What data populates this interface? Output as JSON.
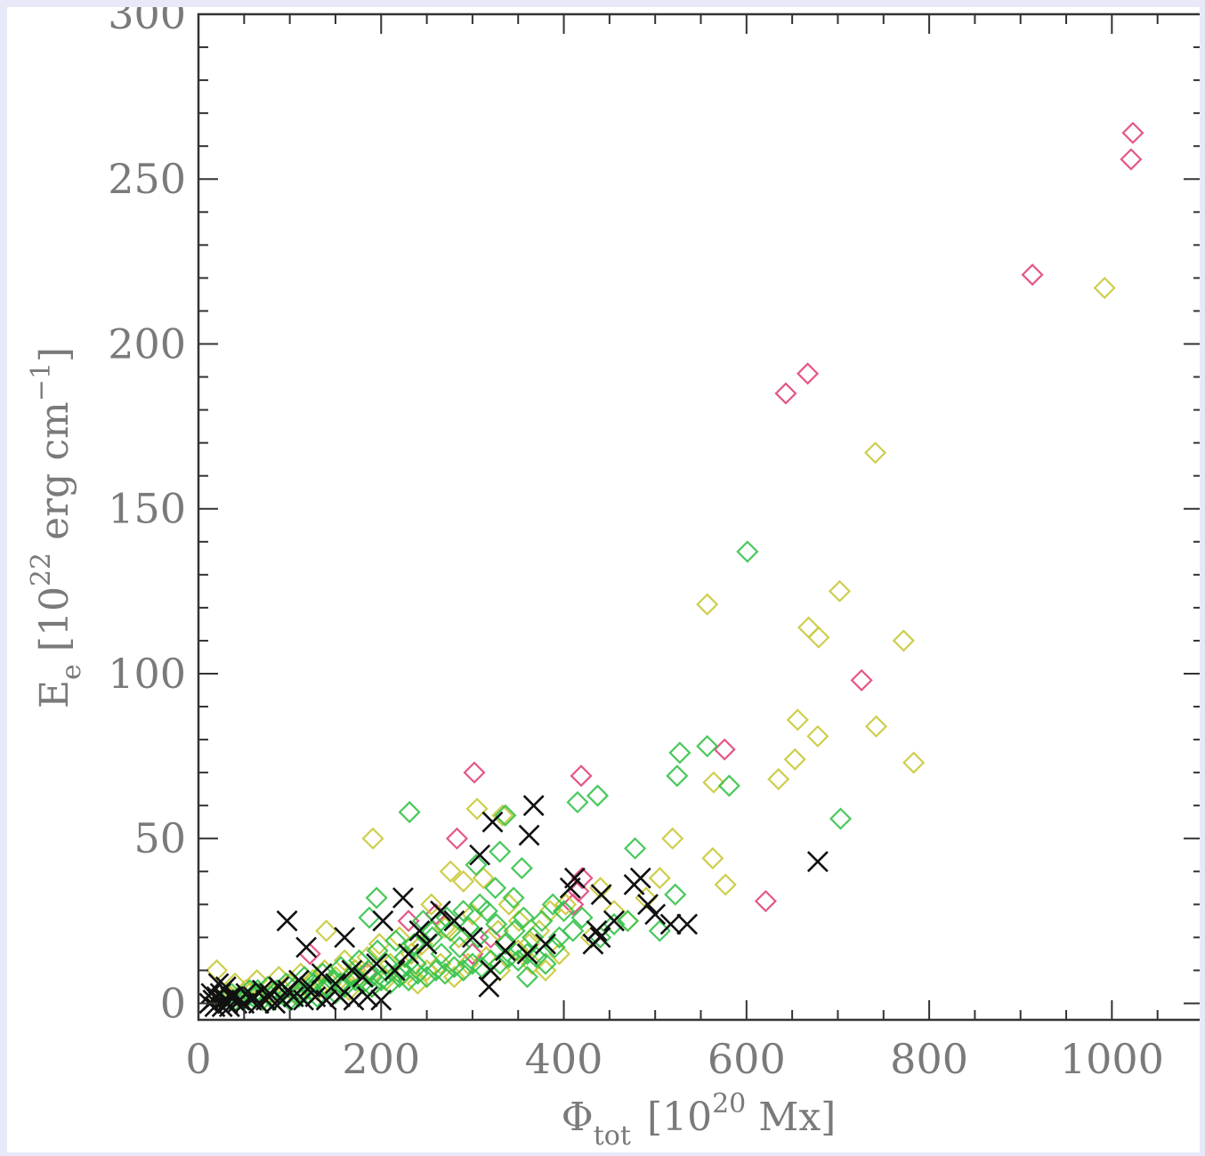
{
  "chart_data": {
    "type": "scatter",
    "xlabel": {
      "symbol": "Φ",
      "sub": "tot",
      "pre": "[10",
      "sup": "20",
      "post": " Mx]"
    },
    "ylabel": {
      "symbol": "E",
      "sub": "e",
      "pre": "[10",
      "sup": "22",
      "mid": " erg cm",
      "sup2": "−1",
      "post": "]"
    },
    "xlim": [
      0,
      1100
    ],
    "ylim": [
      -5,
      300
    ],
    "x_ticks": [
      0,
      200,
      400,
      600,
      800,
      1000
    ],
    "y_ticks": [
      0,
      50,
      100,
      150,
      200,
      250,
      300
    ],
    "x_tick_labels": [
      "0",
      "200",
      "400",
      "600",
      "800",
      "1000"
    ],
    "y_tick_labels": [
      "0",
      "50",
      "100",
      "150",
      "200",
      "250",
      "300"
    ],
    "colors": {
      "red": "#e0457b",
      "yellow": "#c9c93a",
      "green": "#35c24a",
      "black": "#111111",
      "axis": "#333333"
    },
    "series": [
      {
        "marker": "diamond",
        "color": "red",
        "points": [
          [
            1023,
            264
          ],
          [
            1021,
            256
          ],
          [
            913,
            221
          ],
          [
            667,
            191
          ],
          [
            643,
            185
          ],
          [
            726,
            98
          ],
          [
            576,
            77
          ],
          [
            302,
            70
          ],
          [
            419,
            69
          ],
          [
            621,
            31
          ],
          [
            283,
            50
          ],
          [
            420,
            38
          ],
          [
            416,
            34
          ],
          [
            122,
            15
          ],
          [
            185,
            9
          ],
          [
            260,
            27
          ],
          [
            320,
            20
          ],
          [
            410,
            30
          ],
          [
            230,
            25
          ],
          [
            300,
            15
          ]
        ]
      },
      {
        "marker": "diamond",
        "color": "yellow",
        "points": [
          [
            992,
            217
          ],
          [
            741,
            167
          ],
          [
            557,
            121
          ],
          [
            702,
            125
          ],
          [
            668,
            114
          ],
          [
            679,
            111
          ],
          [
            772,
            110
          ],
          [
            656,
            86
          ],
          [
            742,
            84
          ],
          [
            678,
            81
          ],
          [
            783,
            73
          ],
          [
            653,
            74
          ],
          [
            635,
            68
          ],
          [
            564,
            67
          ],
          [
            519,
            50
          ],
          [
            563,
            44
          ],
          [
            577,
            36
          ],
          [
            191,
            50
          ],
          [
            305,
            59
          ],
          [
            333,
            57
          ],
          [
            312,
            38
          ],
          [
            276,
            40
          ],
          [
            290,
            37
          ],
          [
            140,
            22
          ],
          [
            20,
            10
          ],
          [
            402,
            30
          ],
          [
            385,
            28
          ],
          [
            373,
            22
          ],
          [
            362,
            18
          ],
          [
            351,
            25
          ],
          [
            340,
            30
          ],
          [
            328,
            22
          ],
          [
            300,
            27
          ],
          [
            285,
            20
          ],
          [
            270,
            23
          ],
          [
            255,
            30
          ],
          [
            245,
            18
          ],
          [
            233,
            15
          ],
          [
            220,
            20
          ],
          [
            210,
            12
          ],
          [
            198,
            18
          ],
          [
            185,
            14
          ],
          [
            172,
            10
          ],
          [
            160,
            13
          ],
          [
            150,
            8
          ],
          [
            138,
            10
          ],
          [
            125,
            7
          ],
          [
            112,
            9
          ],
          [
            100,
            6
          ],
          [
            88,
            8
          ],
          [
            76,
            5
          ],
          [
            64,
            7
          ],
          [
            52,
            4
          ],
          [
            40,
            6
          ],
          [
            505,
            38
          ],
          [
            490,
            32
          ],
          [
            470,
            25
          ],
          [
            455,
            28
          ],
          [
            440,
            35
          ],
          [
            430,
            20
          ],
          [
            395,
            15
          ],
          [
            380,
            10
          ],
          [
            365,
            12
          ],
          [
            350,
            16
          ],
          [
            330,
            10
          ],
          [
            315,
            14
          ],
          [
            295,
            12
          ],
          [
            280,
            8
          ],
          [
            265,
            12
          ],
          [
            250,
            10
          ],
          [
            240,
            6
          ],
          [
            225,
            9
          ],
          [
            205,
            7
          ],
          [
            190,
            5
          ],
          [
            175,
            8
          ],
          [
            165,
            4
          ],
          [
            145,
            6
          ],
          [
            130,
            4
          ],
          [
            118,
            5
          ],
          [
            105,
            3
          ],
          [
            93,
            4
          ],
          [
            80,
            3
          ],
          [
            68,
            2
          ],
          [
            56,
            3
          ],
          [
            44,
            2
          ],
          [
            32,
            3
          ],
          [
            25,
            1
          ]
        ]
      },
      {
        "marker": "diamond",
        "color": "green",
        "points": [
          [
            601,
            137
          ],
          [
            557,
            78
          ],
          [
            527,
            76
          ],
          [
            524,
            69
          ],
          [
            581,
            66
          ],
          [
            703,
            56
          ],
          [
            437,
            63
          ],
          [
            415,
            61
          ],
          [
            231,
            58
          ],
          [
            336,
            57
          ],
          [
            330,
            46
          ],
          [
            354,
            41
          ],
          [
            304,
            42
          ],
          [
            195,
            32
          ],
          [
            187,
            26
          ],
          [
            478,
            47
          ],
          [
            522,
            33
          ],
          [
            505,
            22
          ],
          [
            470,
            25
          ],
          [
            360,
            8
          ],
          [
            380,
            12
          ],
          [
            395,
            20
          ],
          [
            400,
            28
          ],
          [
            388,
            30
          ],
          [
            376,
            25
          ],
          [
            366,
            20
          ],
          [
            356,
            26
          ],
          [
            346,
            22
          ],
          [
            336,
            18
          ],
          [
            326,
            24
          ],
          [
            316,
            28
          ],
          [
            306,
            20
          ],
          [
            296,
            23
          ],
          [
            286,
            17
          ],
          [
            276,
            22
          ],
          [
            266,
            15
          ],
          [
            256,
            20
          ],
          [
            246,
            25
          ],
          [
            236,
            18
          ],
          [
            226,
            14
          ],
          [
            216,
            19
          ],
          [
            206,
            12
          ],
          [
            196,
            16
          ],
          [
            186,
            10
          ],
          [
            176,
            13
          ],
          [
            166,
            8
          ],
          [
            156,
            11
          ],
          [
            146,
            7
          ],
          [
            136,
            9
          ],
          [
            126,
            6
          ],
          [
            116,
            8
          ],
          [
            106,
            5
          ],
          [
            96,
            6
          ],
          [
            86,
            4
          ],
          [
            76,
            5
          ],
          [
            66,
            3
          ],
          [
            56,
            4
          ],
          [
            46,
            2
          ],
          [
            36,
            3
          ],
          [
            30,
            1
          ],
          [
            60,
            2
          ],
          [
            70,
            1
          ],
          [
            80,
            2
          ],
          [
            90,
            3
          ],
          [
            100,
            1
          ],
          [
            110,
            2
          ],
          [
            120,
            3
          ],
          [
            130,
            2
          ],
          [
            140,
            4
          ],
          [
            150,
            3
          ],
          [
            160,
            5
          ],
          [
            170,
            4
          ],
          [
            180,
            6
          ],
          [
            190,
            5
          ],
          [
            200,
            7
          ],
          [
            210,
            6
          ],
          [
            220,
            8
          ],
          [
            230,
            7
          ],
          [
            240,
            9
          ],
          [
            250,
            8
          ],
          [
            260,
            10
          ],
          [
            270,
            9
          ],
          [
            280,
            11
          ],
          [
            290,
            10
          ],
          [
            300,
            12
          ],
          [
            310,
            11
          ],
          [
            320,
            13
          ],
          [
            330,
            12
          ],
          [
            340,
            14
          ],
          [
            350,
            13
          ],
          [
            360,
            15
          ],
          [
            370,
            14
          ],
          [
            390,
            17
          ],
          [
            410,
            22
          ],
          [
            420,
            26
          ],
          [
            440,
            20
          ],
          [
            455,
            24
          ],
          [
            345,
            32
          ],
          [
            325,
            35
          ],
          [
            308,
            30
          ],
          [
            290,
            28
          ],
          [
            272,
            26
          ],
          [
            255,
            22
          ],
          [
            238,
            12
          ],
          [
            222,
            10
          ],
          [
            208,
            9
          ],
          [
            190,
            8
          ],
          [
            172,
            7
          ],
          [
            155,
            6
          ],
          [
            140,
            5
          ],
          [
            125,
            4
          ],
          [
            110,
            3
          ],
          [
            95,
            2
          ],
          [
            82,
            1
          ],
          [
            65,
            4
          ],
          [
            50,
            1
          ],
          [
            40,
            1
          ]
        ]
      },
      {
        "marker": "cross",
        "color": "black",
        "points": [
          [
            367,
            60
          ],
          [
            322,
            55
          ],
          [
            362,
            51
          ],
          [
            308,
            45
          ],
          [
            97,
            25
          ],
          [
            678,
            43
          ],
          [
            412,
            38
          ],
          [
            407,
            35
          ],
          [
            477,
            36
          ],
          [
            484,
            38
          ],
          [
            492,
            30
          ],
          [
            441,
            33
          ],
          [
            500,
            27
          ],
          [
            535,
            24
          ],
          [
            517,
            24
          ],
          [
            455,
            25
          ],
          [
            436,
            22
          ],
          [
            432,
            18
          ],
          [
            440,
            20
          ],
          [
            224,
            32
          ],
          [
            242,
            22
          ],
          [
            202,
            25
          ],
          [
            160,
            20
          ],
          [
            118,
            17
          ],
          [
            300,
            20
          ],
          [
            320,
            10
          ],
          [
            360,
            15
          ],
          [
            380,
            18
          ],
          [
            336,
            16
          ],
          [
            318,
            5
          ],
          [
            280,
            25
          ],
          [
            265,
            28
          ],
          [
            250,
            18
          ],
          [
            230,
            15
          ],
          [
            215,
            10
          ],
          [
            195,
            12
          ],
          [
            180,
            8
          ],
          [
            168,
            10
          ],
          [
            150,
            6
          ],
          [
            135,
            9
          ],
          [
            122,
            5
          ],
          [
            110,
            7
          ],
          [
            98,
            4
          ],
          [
            88,
            5
          ],
          [
            78,
            3
          ],
          [
            70,
            4
          ],
          [
            60,
            2
          ],
          [
            52,
            3
          ],
          [
            45,
            1
          ],
          [
            38,
            2
          ],
          [
            32,
            0
          ],
          [
            28,
            1
          ],
          [
            24,
            3
          ],
          [
            20,
            2
          ],
          [
            16,
            1
          ],
          [
            12,
            0
          ],
          [
            22,
            6
          ],
          [
            30,
            5
          ],
          [
            35,
            2
          ],
          [
            42,
            0
          ],
          [
            50,
            0
          ],
          [
            58,
            1
          ],
          [
            66,
            0
          ],
          [
            74,
            1
          ],
          [
            84,
            0
          ],
          [
            92,
            1
          ],
          [
            104,
            2
          ],
          [
            115,
            1
          ],
          [
            128,
            2
          ],
          [
            140,
            1
          ],
          [
            155,
            2
          ],
          [
            170,
            1
          ],
          [
            185,
            2
          ],
          [
            200,
            1
          ],
          [
            14,
            3
          ],
          [
            18,
            -1
          ],
          [
            26,
            -1
          ],
          [
            34,
            -1
          ]
        ]
      }
    ]
  }
}
